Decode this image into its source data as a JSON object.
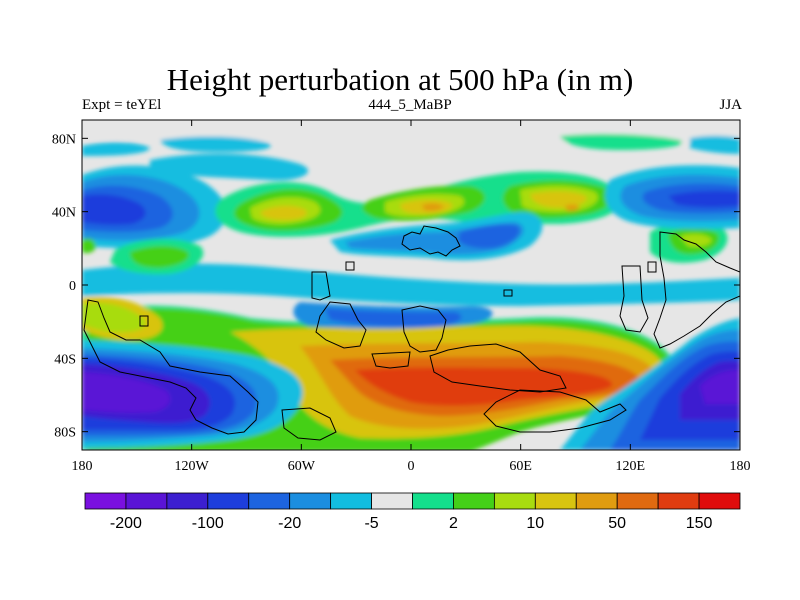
{
  "title": "Height perturbation at 500 hPa (in m)",
  "subtitle_left": "Expt = teYEl",
  "subtitle_center": "444_5_MaBP",
  "subtitle_right": "JJA",
  "lat_ticks": [
    {
      "value": 80,
      "label": "80N"
    },
    {
      "value": 40,
      "label": "40N"
    },
    {
      "value": 0,
      "label": "0"
    },
    {
      "value": -40,
      "label": "40S"
    },
    {
      "value": -80,
      "label": "80S"
    }
  ],
  "lon_ticks": [
    {
      "value": -180,
      "label": "180"
    },
    {
      "value": -120,
      "label": "120W"
    },
    {
      "value": -60,
      "label": "60W"
    },
    {
      "value": 0,
      "label": "0"
    },
    {
      "value": 60,
      "label": "60E"
    },
    {
      "value": 120,
      "label": "120E"
    },
    {
      "value": 180,
      "label": "180"
    }
  ],
  "colorbar": {
    "colors": [
      "#7a10e0",
      "#5a14d6",
      "#3c1fd0",
      "#1e3edc",
      "#1d64e0",
      "#1b8ee0",
      "#12bde0",
      "#e6e6e6",
      "#14df8c",
      "#44d018",
      "#a8dc10",
      "#d8c410",
      "#e09c10",
      "#e06a10",
      "#e03c10",
      "#e00c0c"
    ],
    "labels": [
      {
        "boundary": 1,
        "text": "-200"
      },
      {
        "boundary": 3,
        "text": "-100"
      },
      {
        "boundary": 5,
        "text": "-20"
      },
      {
        "boundary": 7,
        "text": "-5"
      },
      {
        "boundary": 9,
        "text": "2"
      },
      {
        "boundary": 11,
        "text": "10"
      },
      {
        "boundary": 13,
        "text": "50"
      },
      {
        "boundary": 15,
        "text": "150"
      }
    ]
  },
  "field_colors": {
    "neutral": "#e6e6e6",
    "land_outline": "#000000"
  }
}
